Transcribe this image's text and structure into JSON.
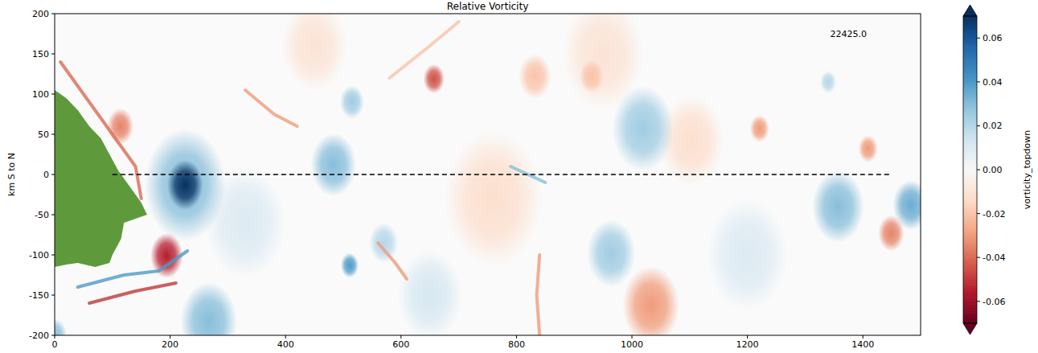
{
  "chart_data": {
    "type": "field",
    "title": "Relative Vorticity",
    "y_label": "km S to N",
    "xlim": [
      0,
      1500
    ],
    "ylim": [
      -200,
      200
    ],
    "xticks": [
      0,
      200,
      400,
      600,
      800,
      1000,
      1200,
      1400
    ],
    "yticks": [
      -200,
      -150,
      -100,
      -50,
      0,
      50,
      100,
      150,
      200
    ],
    "annotation": {
      "text": "22425.0",
      "x": 1375,
      "y": 175
    },
    "transect": {
      "x": [
        100,
        1450
      ],
      "y": [
        0,
        0
      ],
      "line_style": "dashed",
      "color": "#000000"
    },
    "land": {
      "color": "#5e9a3c",
      "x": [
        0,
        20,
        40,
        60,
        80,
        95,
        110,
        130,
        150,
        160,
        140,
        120,
        115,
        100,
        95,
        70,
        40,
        20,
        0
      ],
      "y": [
        105,
        95,
        80,
        60,
        45,
        25,
        5,
        -15,
        -35,
        -50,
        -55,
        -60,
        -80,
        -100,
        -110,
        -115,
        -110,
        -112,
        -115
      ]
    },
    "colorbar": {
      "label": "vorticity_topdown",
      "range": [
        -0.07,
        0.07
      ],
      "ticks": [
        -0.06,
        -0.04,
        -0.02,
        {
          "value": 0,
          "label": "0.00"
        },
        0.02,
        0.04,
        0.06
      ]
    },
    "eddies": [
      {
        "x": 760,
        "y": -30,
        "r": 60,
        "value": -0.012
      },
      {
        "x": 330,
        "y": -60,
        "r": 50,
        "value": 0.01
      },
      {
        "x": 950,
        "y": 150,
        "r": 50,
        "value": -0.01
      },
      {
        "x": 1200,
        "y": -100,
        "r": 50,
        "value": 0.01
      },
      {
        "x": 650,
        "y": -150,
        "r": 40,
        "value": 0.012
      },
      {
        "x": 450,
        "y": 160,
        "r": 40,
        "value": -0.01
      },
      {
        "x": 1103,
        "y": 42,
        "r": 40,
        "value": -0.012
      },
      {
        "x": 226,
        "y": -13,
        "r": 50,
        "value": 0.03
      },
      {
        "x": 226,
        "y": -13,
        "r": 22,
        "value": 0.07
      },
      {
        "x": 194,
        "y": -101,
        "r": 20,
        "value": -0.055
      },
      {
        "x": 114,
        "y": 60,
        "r": 16,
        "value": -0.035
      },
      {
        "x": 483,
        "y": 12,
        "r": 28,
        "value": 0.03
      },
      {
        "x": 657,
        "y": 119,
        "r": 13,
        "value": -0.045
      },
      {
        "x": 515,
        "y": 90,
        "r": 15,
        "value": 0.025
      },
      {
        "x": 1019,
        "y": 57,
        "r": 38,
        "value": 0.025
      },
      {
        "x": 832,
        "y": 122,
        "r": 20,
        "value": -0.02
      },
      {
        "x": 1483,
        "y": -38,
        "r": 22,
        "value": 0.035
      },
      {
        "x": 1357,
        "y": -40,
        "r": 32,
        "value": 0.03
      },
      {
        "x": 1449,
        "y": -73,
        "r": 16,
        "value": -0.035
      },
      {
        "x": 1033,
        "y": -163,
        "r": 35,
        "value": -0.03
      },
      {
        "x": 964,
        "y": -98,
        "r": 30,
        "value": 0.025
      },
      {
        "x": 511,
        "y": -113,
        "r": 11,
        "value": 0.04
      },
      {
        "x": 570,
        "y": -85,
        "r": 18,
        "value": 0.02
      },
      {
        "x": 267,
        "y": -183,
        "r": 35,
        "value": 0.03
      },
      {
        "x": 1409,
        "y": 32,
        "r": 12,
        "value": -0.03
      },
      {
        "x": 1221,
        "y": 57,
        "r": 12,
        "value": -0.03
      },
      {
        "x": 1340,
        "y": 115,
        "r": 10,
        "value": 0.02
      },
      {
        "x": 930,
        "y": 122,
        "r": 15,
        "value": -0.02
      },
      {
        "x": 0,
        "y": -200,
        "r": 15,
        "value": 0.03
      }
    ],
    "filaments": [
      {
        "value": -0.04,
        "x": [
          10,
          60,
          100,
          140,
          150
        ],
        "y": [
          140,
          90,
          50,
          10,
          -30
        ]
      },
      {
        "value": 0.04,
        "x": [
          40,
          120,
          180,
          230
        ],
        "y": [
          -140,
          -125,
          -120,
          -95
        ]
      },
      {
        "value": -0.05,
        "x": [
          60,
          140,
          210
        ],
        "y": [
          -160,
          -145,
          -135
        ]
      },
      {
        "value": -0.03,
        "x": [
          330,
          380,
          420
        ],
        "y": [
          105,
          75,
          60
        ]
      },
      {
        "value": -0.03,
        "x": [
          560,
          590,
          610
        ],
        "y": [
          -85,
          -110,
          -130
        ]
      },
      {
        "value": -0.03,
        "x": [
          840,
          835,
          840
        ],
        "y": [
          -200,
          -150,
          -100
        ]
      },
      {
        "value": 0.03,
        "x": [
          790,
          820,
          850
        ],
        "y": [
          10,
          0,
          -10
        ]
      },
      {
        "value": -0.02,
        "x": [
          580,
          650,
          700
        ],
        "y": [
          120,
          160,
          190
        ]
      }
    ]
  }
}
